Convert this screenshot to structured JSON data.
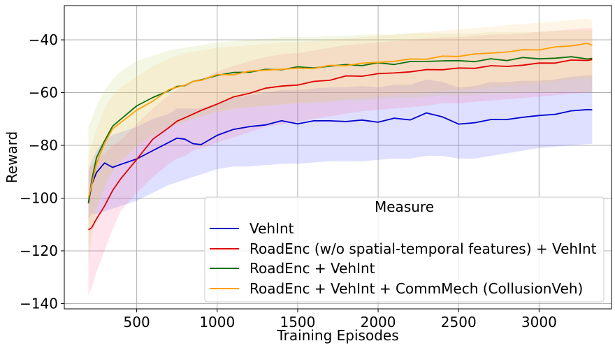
{
  "chart_data": {
    "type": "line",
    "xlabel": "Training Episodes",
    "ylabel": "Reward",
    "xlim": [
      50,
      3450
    ],
    "ylim": [
      -142,
      -27
    ],
    "xticks": [
      500,
      1000,
      1500,
      2000,
      2500,
      3000
    ],
    "yticks": [
      -40,
      -60,
      -80,
      -100,
      -120,
      -140
    ],
    "xtick_labels": [
      "500",
      "1000",
      "1500",
      "2000",
      "2500",
      "3000"
    ],
    "ytick_labels": [
      "−40",
      "−60",
      "−80",
      "−100",
      "−120",
      "−140"
    ],
    "grid": true,
    "legend": {
      "title": "Measure",
      "placement": "lower-right"
    },
    "x": [
      200,
      220,
      250,
      300,
      350,
      400,
      500,
      600,
      700,
      750,
      800,
      850,
      900,
      1000,
      1100,
      1200,
      1300,
      1400,
      1500,
      1600,
      1700,
      1800,
      1900,
      2000,
      2100,
      2200,
      2300,
      2400,
      2500,
      2600,
      2700,
      2800,
      2900,
      3000,
      3100,
      3200,
      3300,
      3330
    ],
    "series": [
      {
        "name": "VehInt",
        "color": "#0000cc",
        "band_color": "#4d4dff",
        "values": [
          -102,
          -95,
          -90,
          -87,
          -88,
          -87.5,
          -85,
          -82,
          -79,
          -77,
          -78,
          -79,
          -80,
          -76,
          -74,
          -73,
          -72,
          -71,
          -71.5,
          -71,
          -70.5,
          -71,
          -70.5,
          -71,
          -70,
          -70,
          -68,
          -69,
          -72,
          -71.5,
          -70,
          -70.5,
          -69,
          -69,
          -68,
          -67,
          -66.5,
          -66.5
        ],
        "lower": [
          -108,
          -106,
          -106,
          -105,
          -104,
          -103,
          -101,
          -98,
          -95,
          -94,
          -93,
          -92,
          -91,
          -89,
          -88,
          -88,
          -87.5,
          -87,
          -87,
          -86.5,
          -86,
          -86,
          -86,
          -85.5,
          -85,
          -85,
          -84,
          -84,
          -85,
          -85,
          -84,
          -83,
          -82,
          -81,
          -80.5,
          -80,
          -79.5,
          -79.5
        ],
        "upper": [
          -90,
          -86,
          -82,
          -78,
          -76,
          -75,
          -73,
          -70,
          -68,
          -66,
          -66,
          -66,
          -66,
          -64,
          -62,
          -61,
          -60,
          -59,
          -59,
          -58.5,
          -58,
          -58,
          -57.5,
          -58,
          -57,
          -57,
          -55,
          -56,
          -58,
          -57.5,
          -56,
          -56,
          -55.5,
          -55.5,
          -55,
          -54,
          -53.5,
          -53.5
        ]
      },
      {
        "name": "RoadEnc (w/o spatial-temporal features) + VehInt",
        "color": "#e00000",
        "band_color": "#ff6b9d",
        "values": [
          -112,
          -111,
          -108,
          -103,
          -97,
          -93,
          -85,
          -78,
          -73,
          -71,
          -69.5,
          -68,
          -67,
          -64,
          -62,
          -60,
          -58.5,
          -57.5,
          -57,
          -56,
          -55,
          -54,
          -53.5,
          -53,
          -52.5,
          -52,
          -51.5,
          -51,
          -51,
          -50.5,
          -50,
          -50,
          -49.5,
          -49,
          -48.5,
          -48,
          -47.5,
          -47.5
        ],
        "lower": [
          -137,
          -134,
          -128,
          -120,
          -112,
          -105,
          -98,
          -92,
          -87,
          -85,
          -84,
          -82,
          -81,
          -79,
          -77,
          -75,
          -73,
          -72,
          -71,
          -70,
          -69,
          -68,
          -67,
          -66.5,
          -66,
          -65.5,
          -65,
          -64,
          -64,
          -63.5,
          -63,
          -62.5,
          -62,
          -61.5,
          -61,
          -60.5,
          -60,
          -60
        ],
        "upper": [
          -88,
          -88,
          -86,
          -83,
          -80,
          -78,
          -72,
          -66,
          -61,
          -59,
          -57.5,
          -56,
          -55,
          -52,
          -50,
          -48,
          -46.5,
          -45.5,
          -45,
          -44,
          -43,
          -42,
          -41.5,
          -41,
          -40.5,
          -40,
          -39.5,
          -39,
          -39,
          -38.5,
          -38,
          -38,
          -37.5,
          -37,
          -36.5,
          -36,
          -35.5,
          -35.5
        ]
      },
      {
        "name": "RoadEnc + VehInt",
        "color": "#107010",
        "band_color": "#bcd26a",
        "values": [
          -102,
          -93,
          -85,
          -78,
          -73,
          -70,
          -65,
          -62,
          -59,
          -58,
          -57,
          -56,
          -55,
          -53.5,
          -52.5,
          -52,
          -51.5,
          -51,
          -50.5,
          -50.5,
          -50,
          -49.5,
          -49.5,
          -49,
          -49,
          -48.5,
          -48,
          -48,
          -48,
          -48,
          -47.5,
          -47.5,
          -47,
          -47,
          -47,
          -46.5,
          -47,
          -47
        ],
        "lower": [
          -125,
          -115,
          -104,
          -96,
          -90,
          -86,
          -80,
          -76,
          -73,
          -72,
          -71,
          -70,
          -69,
          -67,
          -66,
          -65.5,
          -65,
          -64.5,
          -64,
          -64,
          -63.5,
          -63,
          -63,
          -62.5,
          -62,
          -62,
          -61.5,
          -61,
          -61,
          -61,
          -60.5,
          -60.5,
          -60,
          -60,
          -60,
          -59.5,
          -60,
          -60
        ],
        "upper": [
          -73,
          -70,
          -65,
          -59,
          -55,
          -52,
          -48,
          -46,
          -44,
          -43.5,
          -43,
          -42.5,
          -42,
          -41,
          -40.5,
          -40,
          -39.5,
          -39,
          -39,
          -39,
          -38.5,
          -38.5,
          -38,
          -38,
          -38,
          -37.5,
          -37.5,
          -37.5,
          -37.5,
          -37.5,
          -37,
          -37,
          -37,
          -37,
          -36.5,
          -36.5,
          -36.5,
          -36.5
        ]
      },
      {
        "name": "RoadEnc + VehInt + CommMech (CollusionVeh)",
        "color": "#ffa000",
        "band_color": "#ffc87a",
        "values": [
          -100,
          -95,
          -87,
          -79,
          -74,
          -71,
          -67,
          -63,
          -59,
          -58,
          -57,
          -56,
          -55,
          -53.5,
          -53,
          -52,
          -51.5,
          -51,
          -51,
          -50.5,
          -50,
          -49.5,
          -49,
          -48.5,
          -48,
          -47.5,
          -47,
          -46.5,
          -46,
          -45.5,
          -45,
          -44.5,
          -44,
          -43.5,
          -43,
          -42,
          -41.5,
          -42
        ],
        "lower": [
          -118,
          -112,
          -104,
          -96,
          -90,
          -86,
          -81,
          -77,
          -73,
          -72,
          -71,
          -70,
          -69,
          -67.5,
          -66.5,
          -65.5,
          -65,
          -64.5,
          -64,
          -63.5,
          -63,
          -62.5,
          -62,
          -61.5,
          -61,
          -60.5,
          -60,
          -59.5,
          -59,
          -58.5,
          -58,
          -57.5,
          -57,
          -56.5,
          -56,
          -55,
          -54.5,
          -55
        ],
        "upper": [
          -84,
          -80,
          -74,
          -66,
          -61,
          -58,
          -54,
          -50,
          -47,
          -46,
          -45,
          -44.5,
          -44,
          -43,
          -42.5,
          -42,
          -41.5,
          -41,
          -41,
          -40.5,
          -40,
          -39.5,
          -39,
          -38.5,
          -38,
          -37.5,
          -37,
          -36.5,
          -36,
          -35.5,
          -35,
          -34.5,
          -34,
          -33.5,
          -33,
          -32.5,
          -32,
          -32.5
        ]
      }
    ]
  }
}
